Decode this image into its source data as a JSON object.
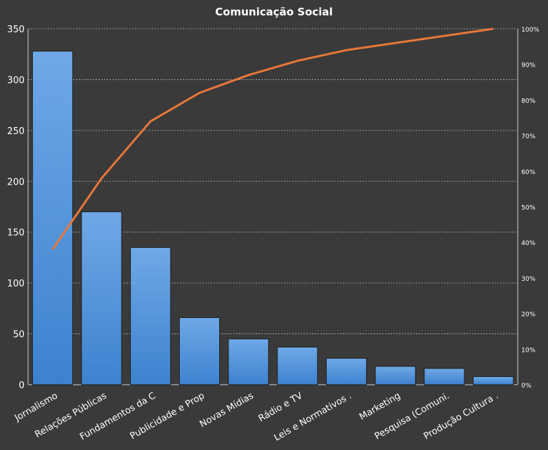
{
  "chart_data": {
    "type": "bar",
    "title": "Comunicação Social",
    "categories": [
      "Jornalismo",
      "Relações Públicas",
      "Fundamentos  da C",
      "Publicidade e Prop",
      "Novas Mídias",
      "Rádio e TV",
      "Leis e Normativos  .",
      "Marketing",
      "Pesquisa (Comuni.",
      "Produção Cultura  ."
    ],
    "values": [
      328,
      170,
      135,
      66,
      45,
      37,
      26,
      18,
      16,
      8
    ],
    "ylim": [
      0,
      350
    ],
    "yticks": [
      "0",
      "50",
      "100",
      "150",
      "200",
      "250",
      "300",
      "350"
    ],
    "y2lim": [
      0,
      100
    ],
    "y2ticks": [
      "0%",
      "10%",
      "20%",
      "30%",
      "40%",
      "50%",
      "60%",
      "70%",
      "80%",
      "90%",
      "100%"
    ],
    "series": [
      {
        "type": "bar",
        "values": [
          328,
          170,
          135,
          66,
          45,
          37,
          26,
          18,
          16,
          8
        ]
      },
      {
        "type": "line",
        "axis": "right",
        "values": [
          38,
          58,
          74,
          82,
          87,
          91,
          94,
          96,
          98,
          100
        ]
      }
    ],
    "grid": true,
    "colors": {
      "background": "#3a3a3a",
      "bar": "#4a8fd8",
      "line": "#e8773a",
      "grid": "#bbbbbb",
      "text": "#ffffff"
    }
  }
}
